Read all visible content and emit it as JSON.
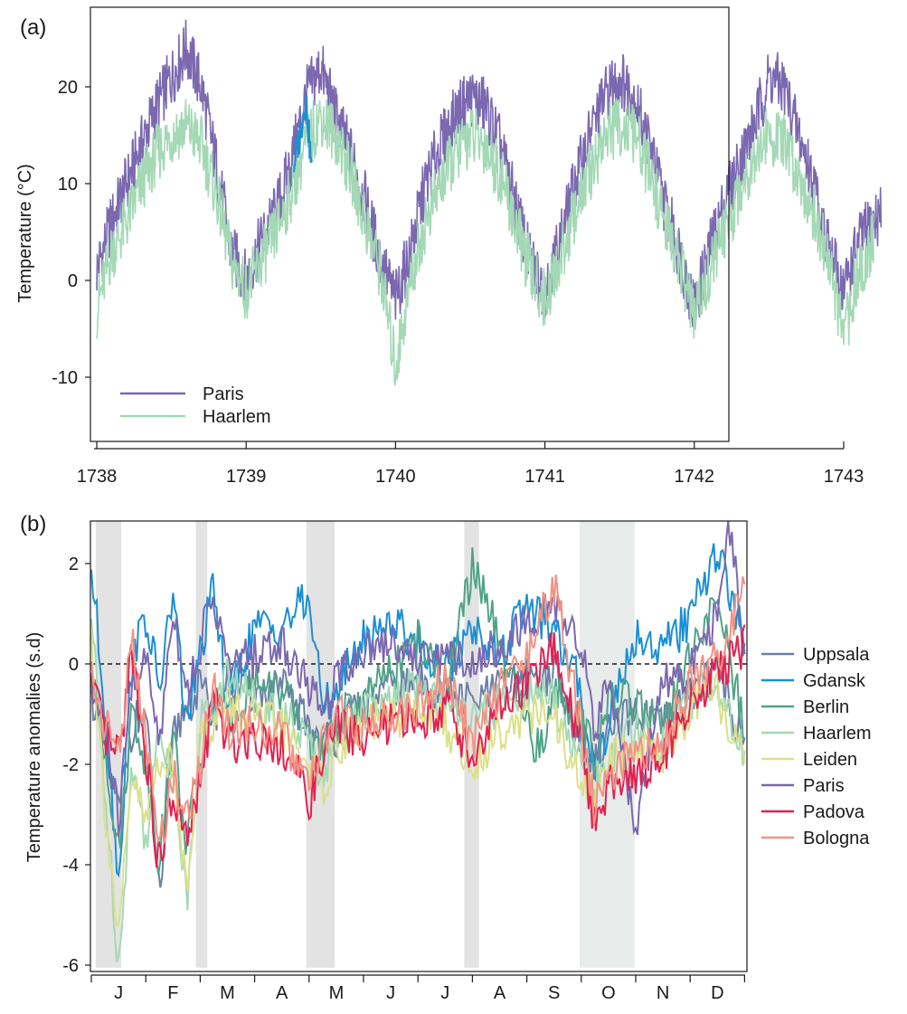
{
  "chart_data": [
    {
      "panel_label": "(a)",
      "type": "line",
      "xlabel": "",
      "ylabel": "Temperature (°C)",
      "xlim": [
        1738,
        1743.3
      ],
      "ylim": [
        -16.5,
        26.5
      ],
      "x_ticks": [
        1738,
        1739,
        1740,
        1741,
        1742,
        1743
      ],
      "y_ticks": [
        -10,
        0,
        10,
        20
      ],
      "legend_position": "bottom-left",
      "grid": false,
      "series": [
        {
          "name": "Paris",
          "color": "#7b68b0",
          "x": [
            1738.0,
            1738.1,
            1738.2,
            1738.3,
            1738.4,
            1738.5,
            1738.6,
            1738.7,
            1738.8,
            1738.9,
            1739.0,
            1739.1,
            1739.2,
            1739.3,
            1739.4,
            1739.5,
            1739.6,
            1739.7,
            1739.8,
            1739.9,
            1740.0,
            1740.1,
            1740.2,
            1740.3,
            1740.4,
            1740.5,
            1740.6,
            1740.7,
            1740.8,
            1740.9,
            1741.0,
            1741.1,
            1741.2,
            1741.3,
            1741.4,
            1741.5,
            1741.6,
            1741.7,
            1741.8,
            1741.9,
            1742.0,
            1742.1,
            1742.2,
            1742.3,
            1742.4,
            1742.5,
            1742.6,
            1742.7,
            1742.8,
            1742.9,
            1743.0,
            1743.1,
            1743.2,
            1743.25
          ],
          "values": [
            1,
            6,
            10,
            14,
            18,
            21,
            24,
            20,
            12,
            3,
            0,
            4,
            7,
            12,
            19,
            22,
            17,
            13,
            8,
            2,
            -2,
            3,
            10,
            14,
            17,
            19,
            18,
            14,
            8,
            2,
            -1,
            4,
            10,
            15,
            19,
            21,
            19,
            14,
            8,
            3,
            -3,
            3,
            8,
            12,
            16,
            21,
            20,
            15,
            10,
            3,
            -1,
            4,
            6,
            7
          ]
        },
        {
          "name": "Haarlem",
          "color": "#a3d9b5",
          "x": [
            1738.0,
            1738.1,
            1738.2,
            1738.3,
            1738.4,
            1738.5,
            1738.6,
            1738.7,
            1738.8,
            1738.9,
            1739.0,
            1739.1,
            1739.2,
            1739.3,
            1739.4,
            1739.5,
            1739.6,
            1739.7,
            1739.8,
            1739.9,
            1740.0,
            1740.1,
            1740.2,
            1740.3,
            1740.4,
            1740.5,
            1740.6,
            1740.7,
            1740.8,
            1740.9,
            1741.0,
            1741.1,
            1741.2,
            1741.3,
            1741.4,
            1741.5,
            1741.6,
            1741.7,
            1741.8,
            1741.9,
            1742.0,
            1742.1,
            1742.2,
            1742.3,
            1742.4,
            1742.5,
            1742.6,
            1742.7,
            1742.8,
            1742.9,
            1743.0,
            1743.1,
            1743.2
          ],
          "values": [
            -3,
            3,
            6,
            10,
            13,
            15,
            16,
            14,
            9,
            2,
            -1,
            2,
            5,
            9,
            14,
            17,
            15,
            11,
            6,
            1,
            -9,
            0,
            6,
            10,
            13,
            15,
            14,
            11,
            6,
            1,
            -2,
            2,
            7,
            11,
            15,
            16,
            15,
            11,
            6,
            2,
            -4,
            1,
            5,
            9,
            13,
            15,
            14,
            11,
            7,
            2,
            -6,
            1,
            4
          ]
        },
        {
          "name": "",
          "color": "#1a8fd4",
          "x": [
            1739.32,
            1739.36,
            1739.4,
            1739.44
          ],
          "values": [
            12,
            15,
            19,
            11
          ]
        }
      ]
    },
    {
      "panel_label": "(b)",
      "type": "line",
      "xlabel": "",
      "ylabel": "Temperature anomalies (s.d)",
      "xlim": [
        0,
        12
      ],
      "ylim": [
        -6.2,
        2.85
      ],
      "categories": [
        "J",
        "F",
        "M",
        "A",
        "M",
        "J",
        "J",
        "A",
        "S",
        "O",
        "N",
        "D"
      ],
      "y_ticks": [
        -6,
        -4,
        -2,
        0,
        2
      ],
      "reference_line": 0,
      "shaded_bands": [
        [
          0.08,
          0.55
        ],
        [
          1.92,
          2.13
        ],
        [
          3.95,
          4.47
        ],
        [
          6.85,
          7.12
        ],
        [
          8.97,
          9.98
        ]
      ],
      "legend_position": "right",
      "grid": false,
      "series": [
        {
          "name": "Uppsala",
          "color": "#6a7fa8",
          "x": [
            0.0,
            0.25,
            0.5,
            0.75,
            1.0,
            1.25,
            1.5,
            1.75,
            2.0,
            2.25,
            2.5,
            3.0,
            3.5,
            4.0,
            4.25,
            4.5,
            5.0,
            5.5,
            6.0,
            6.5,
            7.0,
            7.5,
            8.0,
            8.5,
            9.0,
            9.25,
            9.5,
            10.0,
            10.5,
            11.0,
            11.5,
            12.0
          ],
          "values": [
            -0.5,
            -1.8,
            -3.0,
            -1.2,
            -1.0,
            -4.7,
            -1.5,
            -0.8,
            -0.5,
            -1.0,
            -0.4,
            -0.6,
            -0.5,
            -1.2,
            -1.6,
            -1.4,
            -0.8,
            -0.5,
            -0.4,
            -0.6,
            -0.8,
            -0.5,
            -0.3,
            -0.2,
            -1.5,
            -2.0,
            -1.4,
            -1.0,
            -1.3,
            -0.6,
            -0.1,
            -1.6
          ]
        },
        {
          "name": "Gdansk",
          "color": "#1a8fd4",
          "x": [
            0.0,
            0.25,
            0.5,
            0.75,
            1.0,
            1.25,
            1.5,
            1.75,
            2.0,
            2.25,
            2.5,
            3.0,
            3.5,
            4.0,
            4.25,
            4.5,
            5.0,
            5.5,
            6.0,
            6.5,
            7.0,
            7.5,
            8.0,
            8.5,
            9.0,
            9.25,
            9.5,
            10.0,
            10.5,
            11.0,
            11.5,
            12.0
          ],
          "values": [
            1.9,
            -0.8,
            -4.3,
            0.2,
            0.9,
            -0.5,
            1.4,
            -1.2,
            0.2,
            1.5,
            -0.8,
            0.7,
            0.8,
            1.3,
            -0.9,
            -0.5,
            0.5,
            0.9,
            0.4,
            -0.2,
            0.8,
            0.1,
            1.2,
            0.6,
            -0.5,
            -2.2,
            -1.1,
            0.6,
            0.3,
            0.9,
            2.3,
            0.4
          ]
        },
        {
          "name": "Berlin",
          "color": "#4fa387",
          "x": [
            0.0,
            0.25,
            0.5,
            0.75,
            1.0,
            1.25,
            1.5,
            1.75,
            2.0,
            2.25,
            2.5,
            3.0,
            3.5,
            4.0,
            4.25,
            4.5,
            5.0,
            5.5,
            6.0,
            6.5,
            7.0,
            7.25,
            7.5,
            8.0,
            8.25,
            8.5,
            9.0,
            9.25,
            9.5,
            10.0,
            10.5,
            11.0,
            11.5,
            12.0
          ],
          "values": [
            -0.4,
            -1.6,
            -3.8,
            -0.9,
            -1.9,
            -3.9,
            -1.4,
            -3.6,
            -1.9,
            -0.8,
            -1.2,
            -0.3,
            -0.6,
            -1.4,
            -1.9,
            -1.2,
            -0.7,
            -0.2,
            0.5,
            -0.6,
            1.9,
            1.4,
            0.2,
            -1.2,
            -1.8,
            -0.5,
            -1.0,
            -2.0,
            -0.8,
            -0.7,
            -1.4,
            0.2,
            1.2,
            -1.3
          ]
        },
        {
          "name": "Haarlem",
          "color": "#a3d9b5",
          "x": [
            0.0,
            0.25,
            0.5,
            0.75,
            1.0,
            1.25,
            1.5,
            1.75,
            2.0,
            2.25,
            2.5,
            3.0,
            3.5,
            4.0,
            4.25,
            4.5,
            5.0,
            5.5,
            6.0,
            6.5,
            7.0,
            7.5,
            8.0,
            8.5,
            9.0,
            9.25,
            9.5,
            10.0,
            10.5,
            11.0,
            11.5,
            12.0
          ],
          "values": [
            0.9,
            -2.5,
            -6.0,
            -2.0,
            -3.5,
            -1.4,
            -1.9,
            -4.8,
            -1.1,
            -0.9,
            -0.2,
            -0.7,
            -1.0,
            -1.6,
            -2.2,
            -1.5,
            -1.0,
            -0.8,
            -0.4,
            -0.9,
            -1.2,
            -0.8,
            -0.6,
            -0.7,
            -2.0,
            -2.5,
            -1.8,
            -1.3,
            -1.6,
            -0.7,
            -0.3,
            -1.9
          ]
        },
        {
          "name": "Leiden",
          "color": "#dbe08a",
          "x": [
            0.0,
            0.25,
            0.5,
            0.75,
            1.0,
            1.25,
            1.5,
            1.75,
            2.0,
            2.25,
            2.5,
            3.0,
            3.5,
            4.0,
            4.25,
            4.5,
            5.0,
            5.5,
            6.0,
            6.5,
            7.0,
            7.5,
            8.0,
            8.5,
            9.0,
            9.25,
            9.5,
            10.0,
            10.5,
            11.0,
            11.5,
            12.0
          ],
          "values": [
            0.6,
            -2.8,
            -5.6,
            -2.2,
            -3.2,
            -1.8,
            -2.1,
            -4.4,
            -1.4,
            -1.2,
            -0.8,
            -1.1,
            -1.3,
            -2.0,
            -2.5,
            -1.7,
            -1.2,
            -1.1,
            -0.9,
            -1.2,
            -2.1,
            -1.3,
            -1.0,
            -1.1,
            -2.4,
            -2.7,
            -2.0,
            -1.6,
            -1.8,
            -0.9,
            -0.6,
            -2.0
          ]
        },
        {
          "name": "Paris",
          "color": "#7b68b0",
          "x": [
            0.0,
            0.25,
            0.5,
            0.75,
            1.0,
            1.25,
            1.5,
            1.75,
            2.0,
            2.25,
            2.5,
            3.0,
            3.5,
            4.0,
            4.25,
            4.5,
            5.0,
            5.5,
            6.0,
            6.5,
            7.0,
            7.5,
            8.0,
            8.5,
            9.0,
            9.25,
            9.5,
            10.0,
            10.5,
            11.0,
            11.5,
            11.75,
            12.0
          ],
          "values": [
            -0.6,
            -1.1,
            -3.2,
            -0.3,
            0.1,
            -1.6,
            1.2,
            -0.6,
            0.4,
            1.4,
            -0.1,
            0.2,
            0.4,
            -0.4,
            -1.1,
            -0.2,
            0.3,
            0.5,
            0.1,
            0.2,
            0.0,
            0.4,
            0.8,
            1.2,
            0.3,
            -1.2,
            -0.6,
            -3.2,
            -0.4,
            -0.2,
            1.1,
            2.8,
            0.1
          ]
        },
        {
          "name": "Padova",
          "color": "#e3204f",
          "x": [
            0.0,
            0.25,
            0.5,
            0.75,
            1.0,
            1.25,
            1.5,
            1.75,
            2.0,
            2.25,
            2.5,
            3.0,
            3.5,
            4.0,
            4.25,
            4.5,
            5.0,
            5.5,
            6.0,
            6.5,
            7.0,
            7.5,
            8.0,
            8.5,
            9.0,
            9.25,
            9.5,
            10.0,
            10.5,
            11.0,
            11.5,
            12.0
          ],
          "values": [
            -0.4,
            -1.5,
            -1.9,
            0.3,
            -1.8,
            -4.1,
            -2.6,
            -3.6,
            -2.4,
            -0.6,
            -1.6,
            -1.4,
            -1.6,
            -2.7,
            -1.9,
            -1.2,
            -1.5,
            -1.2,
            -1.1,
            -0.8,
            -1.9,
            -0.9,
            -0.4,
            0.3,
            -1.6,
            -3.2,
            -2.4,
            -2.2,
            -1.8,
            -0.7,
            -0.2,
            0.4
          ]
        },
        {
          "name": "Bologna",
          "color": "#f29283",
          "x": [
            0.0,
            0.25,
            0.5,
            0.75,
            1.0,
            1.25,
            1.5,
            1.75,
            2.0,
            2.25,
            2.5,
            3.0,
            3.5,
            4.0,
            4.25,
            4.5,
            5.0,
            5.5,
            6.0,
            6.5,
            7.0,
            7.5,
            8.0,
            8.5,
            9.0,
            9.25,
            9.5,
            10.0,
            10.5,
            11.0,
            11.5,
            12.0
          ],
          "values": [
            -0.2,
            -1.2,
            -1.7,
            0.4,
            -1.5,
            -3.7,
            -2.2,
            -3.1,
            -2.0,
            -0.3,
            -1.3,
            -1.2,
            -1.4,
            -2.5,
            -1.6,
            -1.0,
            -1.3,
            -1.0,
            -0.8,
            -0.3,
            -1.5,
            -0.5,
            0.2,
            1.6,
            -1.3,
            -2.9,
            -2.1,
            -1.9,
            -1.5,
            -0.4,
            0.1,
            1.4
          ]
        }
      ]
    }
  ]
}
